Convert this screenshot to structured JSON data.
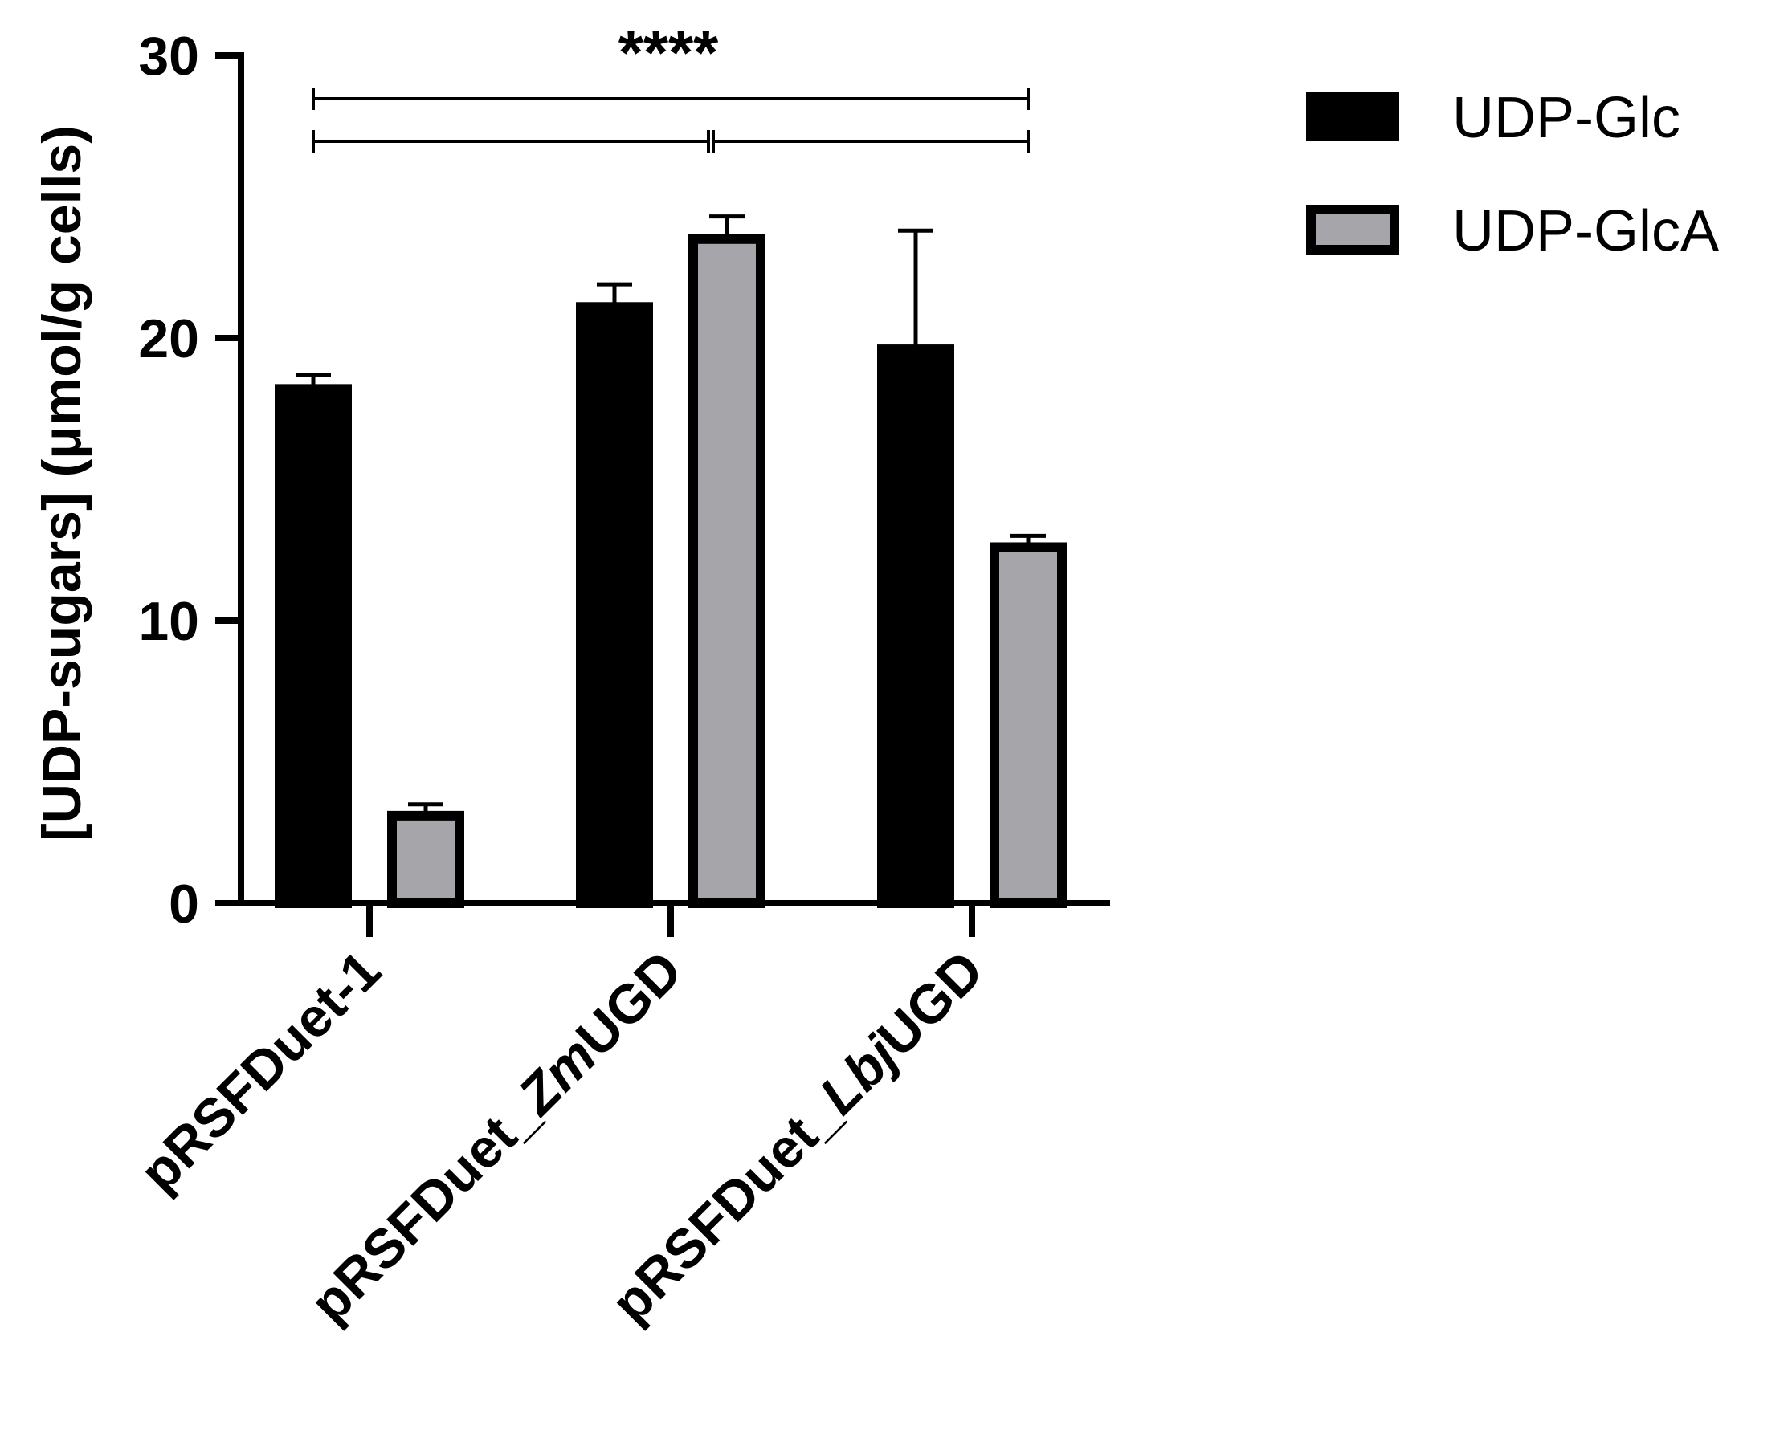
{
  "chart_data": {
    "type": "bar",
    "title": "",
    "xlabel": "",
    "ylabel": "[UDP-sugars] (μmol/g cells)",
    "ylim": [
      0,
      30
    ],
    "yticks": [
      0,
      10,
      20,
      30
    ],
    "grid": false,
    "legend_position": "top-right",
    "categories": [
      [
        {
          "text": "pRSFDuet-1",
          "italic": false
        }
      ],
      [
        {
          "text": "pRSFDuet_",
          "italic": false
        },
        {
          "text": "Zm",
          "italic": true
        },
        {
          "text": "UGD",
          "italic": false
        }
      ],
      [
        {
          "text": "pRSFDuet_",
          "italic": false
        },
        {
          "text": "Lbj",
          "italic": true
        },
        {
          "text": "UGD",
          "italic": false
        }
      ]
    ],
    "series": [
      {
        "name": "UDP-Glc",
        "color": "#000000",
        "values": [
          18.2,
          21.1,
          19.6
        ],
        "errors": [
          0.5,
          0.8,
          4.2
        ]
      },
      {
        "name": "UDP-GlcA",
        "color": "#a6a5aa",
        "values": [
          3.1,
          23.5,
          12.6
        ],
        "errors": [
          0.4,
          0.8,
          0.4
        ]
      }
    ],
    "annotations": [
      {
        "text": "****",
        "from_category": 0,
        "to_category": 2,
        "rows": 2
      }
    ]
  },
  "colors": {
    "axis": "#000000",
    "bar_outline": "#000000"
  }
}
